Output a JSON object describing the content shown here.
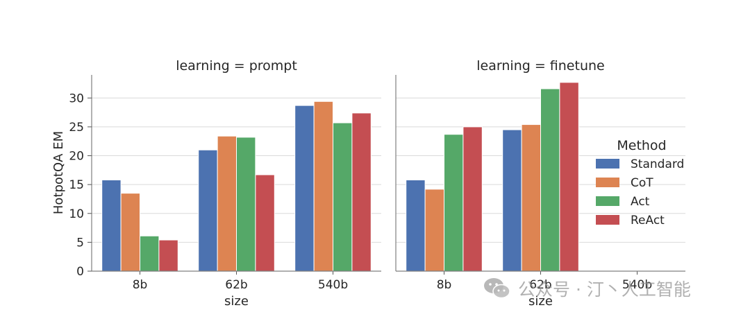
{
  "chart_data": {
    "type": "bar",
    "ylabel": "HotpotQA EM",
    "xlabel": "size",
    "ylim": [
      0,
      34
    ],
    "yticks": [
      0,
      5,
      10,
      15,
      20,
      25,
      30
    ],
    "categories": [
      "8b",
      "62b",
      "540b"
    ],
    "grid": true,
    "legend": {
      "title": "Method",
      "position": "right",
      "entries": [
        "Standard",
        "CoT",
        "Act",
        "ReAct"
      ]
    },
    "colors": {
      "Standard": "#4c72b0",
      "CoT": "#dd8452",
      "Act": "#55a868",
      "ReAct": "#c44e52"
    },
    "panels": [
      {
        "title": "learning = prompt",
        "series": [
          {
            "name": "Standard",
            "values": [
              15.8,
              21.0,
              28.7
            ]
          },
          {
            "name": "CoT",
            "values": [
              13.5,
              23.4,
              29.4
            ]
          },
          {
            "name": "Act",
            "values": [
              6.1,
              23.2,
              25.7
            ]
          },
          {
            "name": "ReAct",
            "values": [
              5.4,
              16.7,
              27.4
            ]
          }
        ]
      },
      {
        "title": "learning = finetune",
        "series": [
          {
            "name": "Standard",
            "values": [
              15.8,
              24.5,
              null
            ]
          },
          {
            "name": "CoT",
            "values": [
              14.2,
              25.4,
              null
            ]
          },
          {
            "name": "Act",
            "values": [
              23.7,
              31.6,
              null
            ]
          },
          {
            "name": "ReAct",
            "values": [
              25.0,
              32.7,
              null
            ]
          }
        ]
      }
    ]
  },
  "watermark": {
    "text": "公众号 · 汀丶人工智能",
    "icon": "wechat-icon"
  }
}
